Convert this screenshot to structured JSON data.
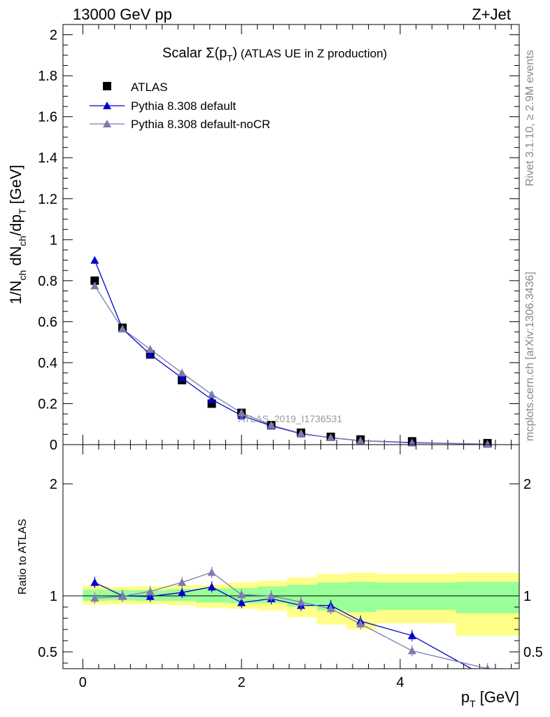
{
  "header": {
    "left": "13000 GeV pp",
    "right": "Z+Jet"
  },
  "side_labels": {
    "rivet": "Rivet 3.1.10, ≥ 2.9M events",
    "mcplots": "mcplots.cern.ch [arXiv:1306.3436]"
  },
  "chart_data": [
    {
      "type": "scatter",
      "title": "Scalar Σ(pT) (ATLAS UE in Z production)",
      "title_parts": {
        "scalar": "Scalar ",
        "sigma": "Σ(p",
        "sub": "T",
        "close": ")",
        "rest": " (ATLAS UE in Z production)"
      },
      "watermark": "ATLAS_2019_I1736531",
      "ylabel": "1/Nch dNch/dpT [GeV]",
      "ylabel_parts": {
        "a": "1/N",
        "a_sub": "ch",
        "b": " dN",
        "b_sub": "ch",
        "c": "/dp",
        "c_sub": "T",
        "d": " [GeV]"
      },
      "xlim": [
        -0.25,
        5.5
      ],
      "ylim": [
        0,
        2.05
      ],
      "yticks": [
        "0",
        "0.2",
        "0.4",
        "0.6",
        "0.8",
        "1",
        "1.2",
        "1.4",
        "1.6",
        "1.8",
        "2"
      ],
      "legend_position": "top-left",
      "series": [
        {
          "name": "ATLAS",
          "color": "#000000",
          "marker": "square",
          "x": [
            0.15,
            0.5,
            0.85,
            1.25,
            1.625,
            2.0,
            2.375,
            2.75,
            3.125,
            3.5,
            4.15,
            5.1
          ],
          "y": [
            0.8,
            0.57,
            0.44,
            0.315,
            0.2,
            0.155,
            0.095,
            0.058,
            0.038,
            0.025,
            0.016,
            0.007
          ]
        },
        {
          "name": "Pythia 8.308 default",
          "color": "#0000cc",
          "marker": "triangle",
          "x": [
            0.15,
            0.5,
            0.85,
            1.25,
            1.625,
            2.0,
            2.375,
            2.75,
            3.125,
            3.5,
            4.15,
            5.1
          ],
          "y": [
            0.9,
            0.565,
            0.44,
            0.325,
            0.22,
            0.142,
            0.092,
            0.053,
            0.034,
            0.019,
            0.01,
            0.002
          ]
        },
        {
          "name": "Pythia 8.308 default-noCR",
          "color": "#7b7bb0",
          "marker": "triangle",
          "x": [
            0.15,
            0.5,
            0.85,
            1.25,
            1.625,
            2.0,
            2.375,
            2.75,
            3.125,
            3.5,
            4.15,
            5.1
          ],
          "y": [
            0.775,
            0.565,
            0.465,
            0.35,
            0.245,
            0.155,
            0.095,
            0.055,
            0.034,
            0.019,
            0.008,
            0.0025
          ]
        }
      ]
    },
    {
      "type": "scatter",
      "xlabel": "pT [GeV]",
      "xlabel_parts": {
        "a": "p",
        "sub": "T",
        "b": " [GeV]"
      },
      "ylabel": "Ratio to ATLAS",
      "xlim": [
        -0.25,
        5.5
      ],
      "ylim": [
        0.35,
        2.35
      ],
      "xticks": [
        "0",
        "2",
        "4"
      ],
      "yticks": [
        "0.5",
        "1",
        "2"
      ],
      "reference_line": 1,
      "bands": {
        "edges": [
          0.0,
          0.3,
          0.65,
          1.05,
          1.425,
          1.825,
          2.2,
          2.575,
          2.95,
          3.325,
          3.7,
          4.7,
          5.5
        ],
        "yellow_low": [
          0.92,
          0.925,
          0.925,
          0.915,
          0.895,
          0.885,
          0.87,
          0.81,
          0.745,
          0.7,
          0.755,
          0.645
        ],
        "yellow_high": [
          1.09,
          1.08,
          1.085,
          1.095,
          1.1,
          1.12,
          1.135,
          1.165,
          1.195,
          1.205,
          1.195,
          1.205
        ],
        "green_low": [
          0.955,
          0.96,
          0.955,
          0.955,
          0.94,
          0.935,
          0.935,
          0.905,
          0.87,
          0.855,
          0.875,
          0.845
        ],
        "green_high": [
          1.055,
          1.05,
          1.05,
          1.06,
          1.065,
          1.07,
          1.085,
          1.1,
          1.12,
          1.125,
          1.12,
          1.125
        ]
      },
      "series": [
        {
          "name": "Pythia 8.308 default",
          "color": "#0000cc",
          "x": [
            0.15,
            0.5,
            0.85,
            1.25,
            1.625,
            2.0,
            2.375,
            2.75,
            3.125,
            3.5,
            4.15,
            5.1
          ],
          "y": [
            1.12,
            1.0,
            0.995,
            1.03,
            1.08,
            0.94,
            0.975,
            0.915,
            0.915,
            0.775,
            0.645,
            0.27
          ]
        },
        {
          "name": "Pythia 8.308 default-noCR",
          "color": "#7b7bb0",
          "x": [
            0.15,
            0.5,
            0.85,
            1.25,
            1.625,
            2.0,
            2.375,
            2.75,
            3.125,
            3.5,
            4.15,
            5.1
          ],
          "y": [
            0.98,
            0.995,
            1.04,
            1.12,
            1.21,
            1.01,
            1.0,
            0.945,
            0.885,
            0.75,
            0.51,
            0.35
          ]
        }
      ]
    }
  ]
}
